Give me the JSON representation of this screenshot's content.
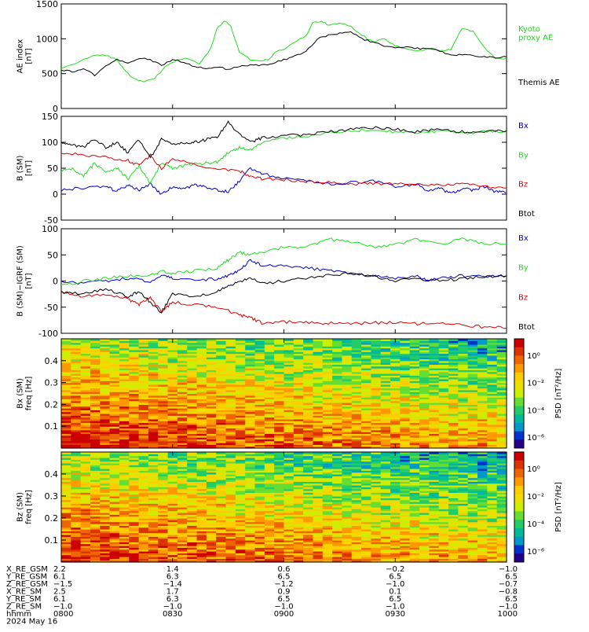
{
  "colors": {
    "black": "#000000",
    "green": "#22dd22",
    "blue": "#0000cc",
    "red": "#dd0000"
  },
  "chart_data": [
    {
      "type": "line",
      "ylabel": "AE index\n[nT]",
      "ylim": [
        0,
        1500
      ],
      "yticks": [
        0,
        500,
        1000,
        1500
      ],
      "x_hours_range": [
        8.0,
        10.0
      ],
      "series": [
        {
          "name": "Kyoto\nproxy AE",
          "color": "green",
          "x": [
            8.0,
            8.05,
            8.1,
            8.15,
            8.2,
            8.25,
            8.28,
            8.32,
            8.37,
            8.42,
            8.47,
            8.52,
            8.57,
            8.62,
            8.67,
            8.7,
            8.73,
            8.76,
            8.8,
            8.85,
            8.9,
            8.93,
            8.96,
            9.0,
            9.05,
            9.1,
            9.13,
            9.17,
            9.2,
            9.25,
            9.3,
            9.35,
            9.4,
            9.45,
            9.5,
            9.55,
            9.6,
            9.65,
            9.7,
            9.75,
            9.8,
            9.85,
            9.9,
            9.95,
            10.0
          ],
          "y": [
            580,
            620,
            700,
            760,
            760,
            700,
            560,
            440,
            380,
            440,
            600,
            700,
            720,
            650,
            850,
            1150,
            1250,
            1200,
            800,
            700,
            680,
            700,
            800,
            850,
            950,
            1050,
            1230,
            1250,
            1200,
            1230,
            1180,
            1050,
            950,
            1000,
            900,
            850,
            830,
            860,
            820,
            850,
            1150,
            1100,
            880,
            720,
            720
          ]
        },
        {
          "name": "Themis AE",
          "color": "black",
          "x": [
            8.0,
            8.05,
            8.1,
            8.15,
            8.2,
            8.25,
            8.3,
            8.35,
            8.4,
            8.45,
            8.5,
            8.55,
            8.6,
            8.65,
            8.7,
            8.75,
            8.8,
            8.85,
            8.9,
            8.95,
            9.0,
            9.05,
            9.1,
            9.15,
            9.2,
            9.25,
            9.3,
            9.35,
            9.4,
            9.45,
            9.5,
            9.55,
            9.6,
            9.65,
            9.7,
            9.75,
            9.8,
            9.85,
            9.9,
            9.95,
            10.0
          ],
          "y": [
            560,
            520,
            580,
            480,
            620,
            700,
            660,
            720,
            700,
            620,
            700,
            660,
            600,
            580,
            600,
            560,
            600,
            620,
            620,
            650,
            700,
            750,
            820,
            1000,
            1050,
            1080,
            1100,
            1000,
            950,
            900,
            870,
            880,
            860,
            860,
            830,
            760,
            780,
            760,
            740,
            730,
            740
          ]
        }
      ]
    },
    {
      "type": "line",
      "ylabel": "B (SM)\n[nT]",
      "ylim": [
        -50,
        150
      ],
      "yticks": [
        -50,
        0,
        50,
        100,
        150
      ],
      "x_hours_range": [
        8.0,
        10.0
      ],
      "series": [
        {
          "name": "Bx",
          "color": "blue",
          "x": [
            8.0,
            8.1,
            8.2,
            8.25,
            8.3,
            8.35,
            8.4,
            8.45,
            8.5,
            8.55,
            8.6,
            8.65,
            8.7,
            8.75,
            8.8,
            8.85,
            8.9,
            9.0,
            9.1,
            9.2,
            9.3,
            9.4,
            9.5,
            9.6,
            9.65,
            9.7,
            9.75,
            9.8,
            9.85,
            9.9,
            9.95,
            10.0
          ],
          "y": [
            8,
            12,
            15,
            5,
            18,
            8,
            20,
            0,
            15,
            10,
            18,
            12,
            8,
            5,
            25,
            50,
            40,
            30,
            25,
            20,
            22,
            25,
            15,
            20,
            5,
            12,
            0,
            10,
            8,
            15,
            5,
            3
          ]
        },
        {
          "name": "By",
          "color": "green",
          "x": [
            8.0,
            8.05,
            8.1,
            8.15,
            8.2,
            8.25,
            8.3,
            8.35,
            8.4,
            8.45,
            8.5,
            8.55,
            8.6,
            8.65,
            8.7,
            8.75,
            8.8,
            8.85,
            8.9,
            9.0,
            9.1,
            9.2,
            9.3,
            9.4,
            9.5,
            9.6,
            9.7,
            9.8,
            9.9,
            10.0
          ],
          "y": [
            45,
            50,
            35,
            60,
            40,
            50,
            30,
            55,
            20,
            60,
            50,
            55,
            58,
            60,
            62,
            80,
            90,
            85,
            100,
            108,
            112,
            118,
            122,
            125,
            120,
            118,
            122,
            118,
            120,
            120
          ]
        },
        {
          "name": "Bz",
          "color": "red",
          "x": [
            8.0,
            8.1,
            8.2,
            8.3,
            8.35,
            8.4,
            8.45,
            8.5,
            8.6,
            8.7,
            8.8,
            8.85,
            8.9,
            9.0,
            9.1,
            9.2,
            9.3,
            9.4,
            9.5,
            9.6,
            9.7,
            9.8,
            9.9,
            10.0
          ],
          "y": [
            80,
            75,
            70,
            65,
            55,
            75,
            50,
            70,
            55,
            50,
            45,
            35,
            30,
            28,
            25,
            22,
            20,
            20,
            20,
            18,
            18,
            20,
            15,
            12
          ]
        },
        {
          "name": "Btot",
          "color": "black",
          "x": [
            8.0,
            8.05,
            8.1,
            8.15,
            8.2,
            8.25,
            8.3,
            8.35,
            8.4,
            8.45,
            8.5,
            8.55,
            8.6,
            8.65,
            8.7,
            8.75,
            8.8,
            8.85,
            8.9,
            9.0,
            9.1,
            9.2,
            9.3,
            9.4,
            9.5,
            9.6,
            9.7,
            9.8,
            9.9,
            10.0
          ],
          "y": [
            100,
            95,
            90,
            105,
            90,
            100,
            80,
            105,
            70,
            105,
            95,
            100,
            100,
            105,
            110,
            140,
            115,
            100,
            108,
            112,
            115,
            120,
            125,
            128,
            125,
            120,
            125,
            120,
            122,
            122
          ]
        }
      ]
    },
    {
      "type": "line",
      "ylabel": "B (SM)−IGRF (SM)\n[nT]",
      "ylim": [
        -100,
        100
      ],
      "yticks": [
        -100,
        -50,
        0,
        50,
        100
      ],
      "x_hours_range": [
        8.0,
        10.0
      ],
      "series": [
        {
          "name": "Bx",
          "color": "blue",
          "x": [
            8.0,
            8.1,
            8.2,
            8.3,
            8.4,
            8.45,
            8.5,
            8.6,
            8.7,
            8.75,
            8.8,
            8.85,
            8.9,
            9.0,
            9.1,
            9.2,
            9.3,
            9.4,
            9.5,
            9.6,
            9.65,
            9.7,
            9.8,
            9.9,
            10.0
          ],
          "y": [
            0,
            -5,
            0,
            5,
            0,
            10,
            5,
            0,
            5,
            10,
            20,
            40,
            30,
            30,
            25,
            20,
            15,
            10,
            5,
            10,
            0,
            5,
            10,
            8,
            10
          ]
        },
        {
          "name": "By",
          "color": "green",
          "x": [
            8.0,
            8.1,
            8.2,
            8.3,
            8.4,
            8.45,
            8.5,
            8.6,
            8.7,
            8.75,
            8.8,
            8.85,
            8.9,
            9.0,
            9.1,
            9.2,
            9.3,
            9.4,
            9.5,
            9.6,
            9.7,
            9.8,
            9.9,
            10.0
          ],
          "y": [
            -10,
            0,
            5,
            10,
            10,
            20,
            15,
            20,
            25,
            40,
            55,
            50,
            55,
            65,
            65,
            80,
            75,
            65,
            70,
            80,
            70,
            80,
            72,
            70
          ]
        },
        {
          "name": "Bz",
          "color": "red",
          "x": [
            8.0,
            8.1,
            8.2,
            8.3,
            8.35,
            8.4,
            8.45,
            8.5,
            8.6,
            8.7,
            8.8,
            8.85,
            8.9,
            9.0,
            9.1,
            9.2,
            9.3,
            9.4,
            9.5,
            9.6,
            9.7,
            9.8,
            9.9,
            10.0
          ],
          "y": [
            -20,
            -30,
            -25,
            -35,
            -45,
            -30,
            -60,
            -40,
            -45,
            -50,
            -65,
            -70,
            -80,
            -78,
            -80,
            -80,
            -82,
            -80,
            -80,
            -82,
            -80,
            -85,
            -88,
            -90
          ]
        },
        {
          "name": "Btot",
          "color": "black",
          "x": [
            8.0,
            8.1,
            8.2,
            8.3,
            8.35,
            8.4,
            8.45,
            8.5,
            8.6,
            8.7,
            8.75,
            8.8,
            8.85,
            8.9,
            9.0,
            9.1,
            9.2,
            9.3,
            9.4,
            9.5,
            9.6,
            9.7,
            9.8,
            9.9,
            10.0
          ],
          "y": [
            -20,
            -25,
            -15,
            -30,
            -20,
            -40,
            -60,
            -25,
            -30,
            -20,
            -10,
            0,
            5,
            -5,
            0,
            5,
            10,
            15,
            10,
            0,
            5,
            0,
            5,
            8,
            10
          ]
        }
      ]
    },
    {
      "type": "heatmap",
      "ylabel": "Bx (SM)\nfreq [Hz]",
      "yticks": [
        "0.1",
        "0.2",
        "0.3",
        "0.4"
      ],
      "ylim": [
        0,
        0.5
      ],
      "colorbar_label": "PSD [nT²/Hz]",
      "colorbar_ticks": [
        "10⁰",
        "10⁻²",
        "10⁻⁴",
        "10⁻⁶"
      ]
    },
    {
      "type": "heatmap",
      "ylabel": "Bz (SM)\nfreq [Hz]",
      "yticks": [
        "0.1",
        "0.2",
        "0.3",
        "0.4"
      ],
      "ylim": [
        0,
        0.5
      ],
      "colorbar_label": "PSD [nT²/Hz]",
      "colorbar_ticks": [
        "10⁰",
        "10⁻²",
        "10⁻⁴",
        "10⁻⁶"
      ]
    }
  ],
  "axis_table": {
    "rows": [
      {
        "label": "X_RE_GSM",
        "values": [
          "2.2",
          "1.4",
          "0.6",
          "−0.2",
          "−1.0"
        ]
      },
      {
        "label": "Y_RE_GSM",
        "values": [
          "6.1",
          "6.3",
          "6.5",
          "6.5",
          "6.5"
        ]
      },
      {
        "label": "Z_RE_GSM",
        "values": [
          "−1.5",
          "−1.4",
          "−1.2",
          "−1.0",
          "−0.7"
        ]
      },
      {
        "label": "X_RE_SM",
        "values": [
          "2.5",
          "1.7",
          "0.9",
          "0.1",
          "−0.8"
        ]
      },
      {
        "label": "Y_RE_SM",
        "values": [
          "6.1",
          "6.3",
          "6.5",
          "6.5",
          "6.5"
        ]
      },
      {
        "label": "Z_RE_SM",
        "values": [
          "−1.0",
          "−1.0",
          "−1.0",
          "−1.0",
          "−1.0"
        ]
      },
      {
        "label": "hhmm",
        "values": [
          "0800",
          "0830",
          "0900",
          "0930",
          "1000"
        ]
      }
    ],
    "date": "2024 May 16"
  }
}
